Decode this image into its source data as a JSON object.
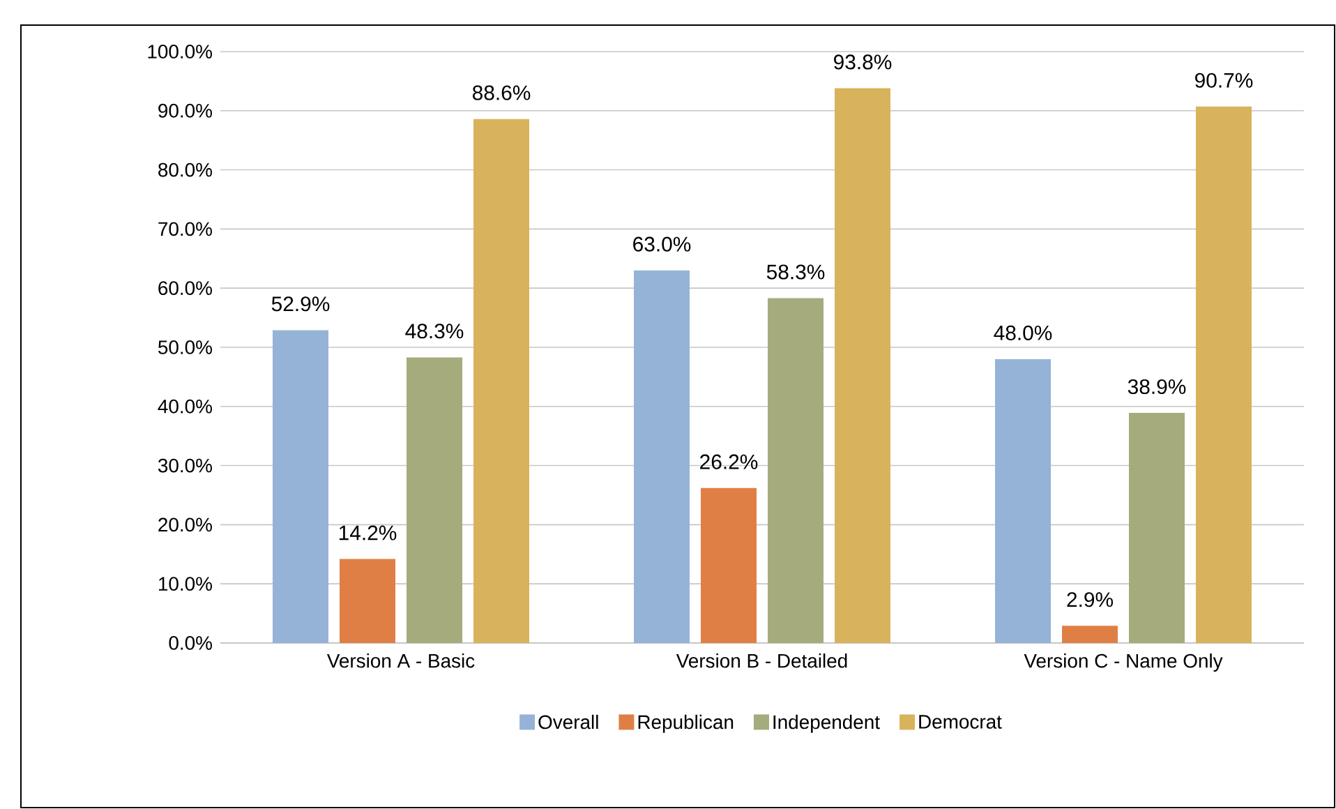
{
  "chart_data": {
    "type": "bar",
    "categories": [
      "Version A - Basic",
      "Version B - Detailed",
      "Version C - Name Only"
    ],
    "series": [
      {
        "name": "Overall",
        "color": "#95b3d7",
        "values": [
          52.9,
          63.0,
          48.0
        ],
        "value_labels": [
          "52.9%",
          "63.0%",
          "48.0%"
        ]
      },
      {
        "name": "Republican",
        "color": "#e07f45",
        "values": [
          14.2,
          26.2,
          2.9
        ],
        "value_labels": [
          "14.2%",
          "26.2%",
          "2.9%"
        ]
      },
      {
        "name": "Independent",
        "color": "#a5ab7d",
        "values": [
          48.3,
          58.3,
          38.9
        ],
        "value_labels": [
          "48.3%",
          "58.3%",
          "38.9%"
        ]
      },
      {
        "name": "Democrat",
        "color": "#d9b25c",
        "values": [
          88.6,
          93.8,
          90.7
        ],
        "value_labels": [
          "88.6%",
          "93.8%",
          "90.7%"
        ]
      }
    ],
    "ylim": [
      0,
      100
    ],
    "yticks": [
      {
        "value": 0,
        "label": "0.0%"
      },
      {
        "value": 10,
        "label": "10.0%"
      },
      {
        "value": 20,
        "label": "20.0%"
      },
      {
        "value": 30,
        "label": "30.0%"
      },
      {
        "value": 40,
        "label": "40.0%"
      },
      {
        "value": 50,
        "label": "50.0%"
      },
      {
        "value": 60,
        "label": "60.0%"
      },
      {
        "value": 70,
        "label": "70.0%"
      },
      {
        "value": 80,
        "label": "80.0%"
      },
      {
        "value": 90,
        "label": "90.0%"
      },
      {
        "value": 100,
        "label": "100.0%"
      }
    ],
    "grid": "y",
    "legend": "bottom"
  }
}
